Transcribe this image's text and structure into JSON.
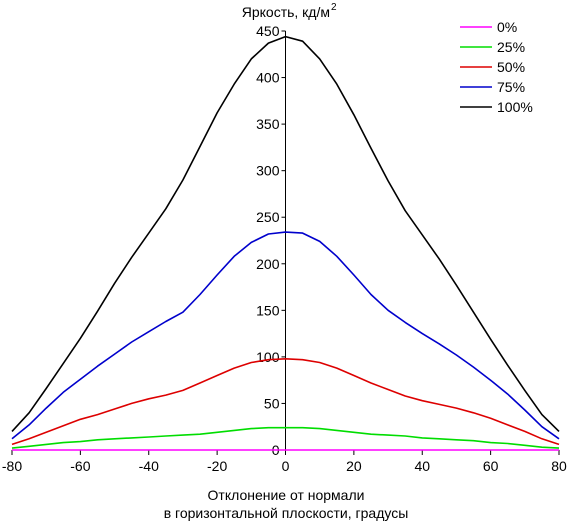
{
  "chart_data": {
    "type": "line",
    "ylabel": "Яркость, кд/м",
    "ylabel_sup": "2",
    "xlabel_line1": "Отклонение от нормали",
    "xlabel_line2": "в горизонтальной плоскости, градусы",
    "xlim": [
      -80,
      80
    ],
    "ylim": [
      0,
      450
    ],
    "xticks": [
      "-80",
      "-60",
      "-40",
      "-20",
      "0",
      "20",
      "40",
      "60",
      "80"
    ],
    "yticks": [
      "0",
      "50",
      "100",
      "150",
      "200",
      "250",
      "300",
      "350",
      "400",
      "450"
    ],
    "legend_position": "top-right",
    "x": [
      -80,
      -75,
      -70,
      -65,
      -60,
      -55,
      -50,
      -45,
      -40,
      -35,
      -30,
      -25,
      -20,
      -15,
      -10,
      -5,
      0,
      5,
      10,
      15,
      20,
      25,
      30,
      35,
      40,
      45,
      50,
      55,
      60,
      65,
      70,
      75,
      80
    ],
    "series": [
      {
        "name": "0%",
        "color": "#ff00ff",
        "values": [
          0,
          0,
          0,
          0,
          0,
          0,
          0,
          0,
          0,
          0,
          0,
          0,
          0,
          0,
          0,
          0,
          0,
          0,
          0,
          0,
          0,
          0,
          0,
          0,
          0,
          0,
          0,
          0,
          0,
          0,
          0,
          0,
          0
        ]
      },
      {
        "name": "25%",
        "color": "#00dd00",
        "values": [
          2,
          4,
          6,
          8,
          9,
          11,
          12,
          13,
          14,
          15,
          16,
          17,
          19,
          21,
          23,
          24,
          24,
          24,
          23,
          21,
          19,
          17,
          16,
          15,
          13,
          12,
          11,
          10,
          8,
          7,
          5,
          3,
          2
        ]
      },
      {
        "name": "50%",
        "color": "#dd0000",
        "values": [
          6,
          12,
          19,
          26,
          33,
          38,
          44,
          50,
          55,
          59,
          64,
          72,
          80,
          88,
          94,
          97,
          98,
          97,
          94,
          88,
          80,
          72,
          65,
          58,
          53,
          49,
          45,
          40,
          34,
          27,
          20,
          12,
          6
        ]
      },
      {
        "name": "75%",
        "color": "#0000cc",
        "values": [
          12,
          27,
          45,
          62,
          76,
          90,
          103,
          116,
          127,
          138,
          148,
          167,
          188,
          208,
          223,
          232,
          234,
          233,
          224,
          208,
          188,
          167,
          150,
          137,
          125,
          114,
          102,
          89,
          75,
          60,
          43,
          25,
          12
        ]
      },
      {
        "name": "100%",
        "color": "#000000",
        "values": [
          20,
          40,
          66,
          93,
          120,
          149,
          179,
          207,
          233,
          259,
          290,
          326,
          362,
          393,
          420,
          437,
          444,
          439,
          420,
          393,
          360,
          324,
          289,
          257,
          231,
          205,
          177,
          148,
          119,
          91,
          64,
          38,
          20
        ]
      }
    ]
  }
}
